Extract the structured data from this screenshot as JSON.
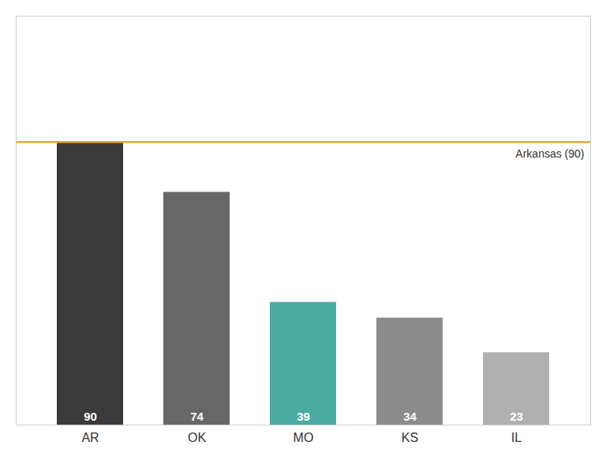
{
  "chart_data": {
    "type": "bar",
    "categories": [
      "AR",
      "OK",
      "MO",
      "KS",
      "IL"
    ],
    "values": [
      90,
      74,
      39,
      34,
      23
    ],
    "colors": [
      "#3a3a3a",
      "#676767",
      "#4aaba0",
      "#8c8c8c",
      "#b0b0b0"
    ],
    "ylim": [
      0,
      130
    ],
    "data_labels": true,
    "tick_labels": "x",
    "annotations": [
      {
        "text": "Arkansas (90)",
        "y": 90,
        "color": "#e8a838"
      }
    ]
  }
}
